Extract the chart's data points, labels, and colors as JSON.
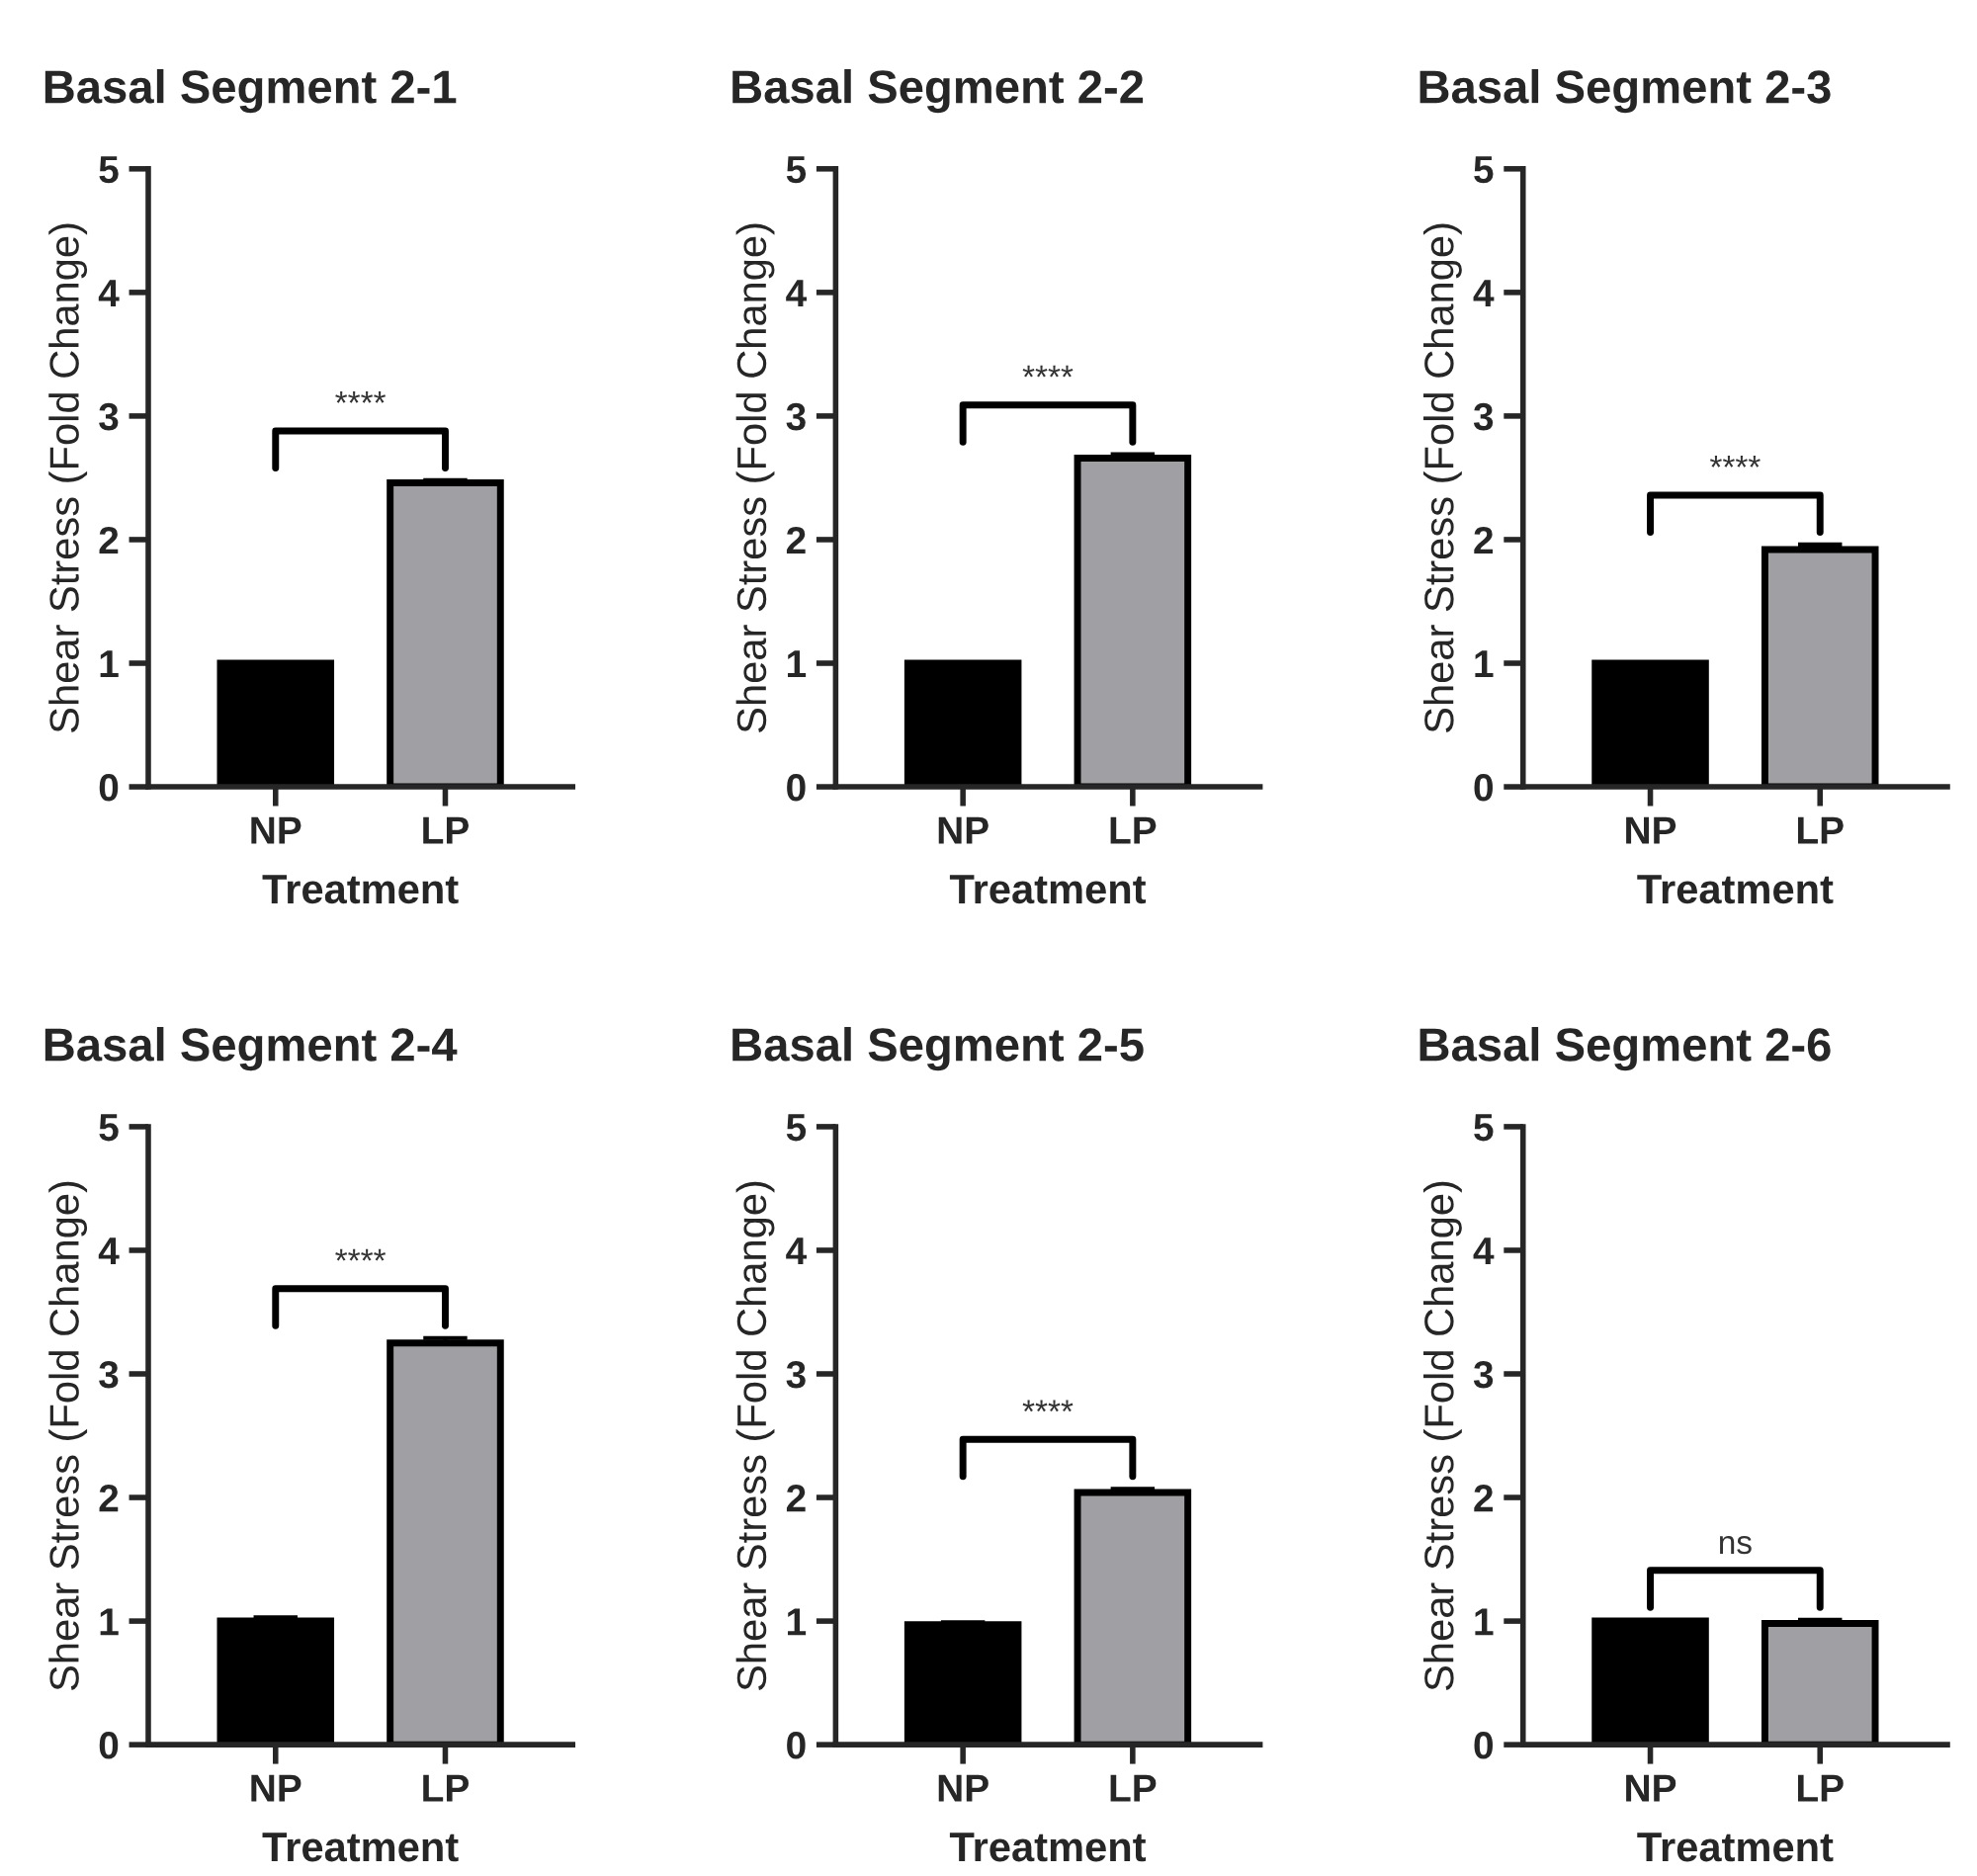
{
  "chart_data": [
    {
      "type": "bar",
      "title": "Basal Segment 2-1",
      "xlabel": "Treatment",
      "ylabel": "Shear Stress (Fold Change)",
      "categories": [
        "NP",
        "LP"
      ],
      "values": [
        1.0,
        2.46
      ],
      "errors": [
        null,
        0.02
      ],
      "colors": [
        "#000000",
        "#a0a0a4"
      ],
      "ylim": [
        0,
        5
      ],
      "yticks": [
        0,
        1,
        2,
        3,
        4,
        5
      ],
      "annotations": [
        "****"
      ]
    },
    {
      "type": "bar",
      "title": "Basal Segment 2-2",
      "xlabel": "Treatment",
      "ylabel": "Shear Stress (Fold Change)",
      "categories": [
        "NP",
        "LP"
      ],
      "values": [
        1.0,
        2.66
      ],
      "errors": [
        null,
        0.03
      ],
      "colors": [
        "#000000",
        "#a0a0a4"
      ],
      "ylim": [
        0,
        5
      ],
      "yticks": [
        0,
        1,
        2,
        3,
        4,
        5
      ],
      "annotations": [
        "****"
      ]
    },
    {
      "type": "bar",
      "title": "Basal Segment 2-3",
      "xlabel": "Treatment",
      "ylabel": "Shear Stress (Fold Change)",
      "categories": [
        "NP",
        "LP"
      ],
      "values": [
        1.0,
        1.92
      ],
      "errors": [
        null,
        0.04
      ],
      "colors": [
        "#000000",
        "#a0a0a4"
      ],
      "ylim": [
        0,
        5
      ],
      "yticks": [
        0,
        1,
        2,
        3,
        4,
        5
      ],
      "annotations": [
        "****"
      ]
    },
    {
      "type": "bar",
      "title": "Basal Segment 2-4",
      "xlabel": "Treatment",
      "ylabel": "Shear Stress (Fold Change)",
      "categories": [
        "NP",
        "LP"
      ],
      "values": [
        1.0,
        3.25
      ],
      "errors": [
        0.03,
        0.04
      ],
      "colors": [
        "#000000",
        "#a0a0a4"
      ],
      "ylim": [
        0,
        5
      ],
      "yticks": [
        0,
        1,
        2,
        3,
        4,
        5
      ],
      "annotations": [
        "****"
      ]
    },
    {
      "type": "bar",
      "title": "Basal Segment 2-5",
      "xlabel": "Treatment",
      "ylabel": "Shear Stress (Fold Change)",
      "categories": [
        "NP",
        "LP"
      ],
      "values": [
        0.97,
        2.04
      ],
      "errors": [
        0.02,
        0.03
      ],
      "colors": [
        "#000000",
        "#a0a0a4"
      ],
      "ylim": [
        0,
        5
      ],
      "yticks": [
        0,
        1,
        2,
        3,
        4,
        5
      ],
      "annotations": [
        "****"
      ]
    },
    {
      "type": "bar",
      "title": "Basal Segment 2-6",
      "xlabel": "Treatment",
      "ylabel": "Shear Stress (Fold Change)",
      "categories": [
        "NP",
        "LP"
      ],
      "values": [
        1.0,
        0.98
      ],
      "errors": [
        null,
        0.03
      ],
      "colors": [
        "#000000",
        "#a0a0a4"
      ],
      "ylim": [
        0,
        5
      ],
      "yticks": [
        0,
        1,
        2,
        3,
        4,
        5
      ],
      "annotations": [
        "ns"
      ]
    }
  ]
}
